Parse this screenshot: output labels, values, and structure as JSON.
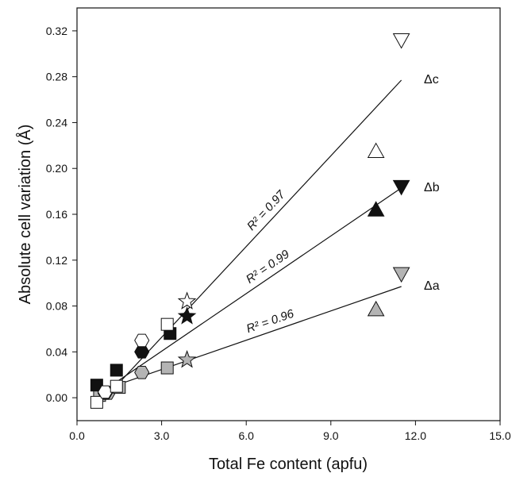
{
  "chart_data": {
    "type": "scatter",
    "xlabel": "Total Fe content (apfu)",
    "ylabel": "Absolute cell variation (Å)",
    "xlim": [
      0.0,
      15.0
    ],
    "ylim": [
      -0.02,
      0.34
    ],
    "x_ticks": [
      0.0,
      3.0,
      6.0,
      9.0,
      12.0,
      15.0
    ],
    "x_tick_labels": [
      "0.0",
      "3.0",
      "6.0",
      "9.0",
      "12.0",
      "15.0"
    ],
    "y_ticks": [
      0.0,
      0.04,
      0.08,
      0.12,
      0.16,
      0.2,
      0.24,
      0.28,
      0.32
    ],
    "y_tick_labels": [
      "0.00",
      "0.04",
      "0.08",
      "0.12",
      "0.16",
      "0.20",
      "0.24",
      "0.28",
      "0.32"
    ],
    "grid": false,
    "series": [
      {
        "name": "Δc",
        "fill": "#ffffff",
        "points": [
          {
            "x": 0.7,
            "y": -0.004,
            "marker": "square"
          },
          {
            "x": 1.0,
            "y": 0.005,
            "marker": "hexagon"
          },
          {
            "x": 1.4,
            "y": 0.01,
            "marker": "square"
          },
          {
            "x": 2.3,
            "y": 0.05,
            "marker": "hexagon"
          },
          {
            "x": 3.2,
            "y": 0.064,
            "marker": "square"
          },
          {
            "x": 3.9,
            "y": 0.084,
            "marker": "star"
          },
          {
            "x": 10.6,
            "y": 0.215,
            "marker": "triangle-up"
          },
          {
            "x": 11.5,
            "y": 0.312,
            "marker": "triangle-down"
          }
        ],
        "fit": {
          "x": [
            0.7,
            11.5
          ],
          "y": [
            -0.008,
            0.277
          ]
        },
        "r2_text": "R² = 0.97"
      },
      {
        "name": "Δb",
        "fill": "#111111",
        "points": [
          {
            "x": 0.7,
            "y": 0.011,
            "marker": "square"
          },
          {
            "x": 1.0,
            "y": 0.004,
            "marker": "hexagon"
          },
          {
            "x": 1.4,
            "y": 0.024,
            "marker": "square"
          },
          {
            "x": 2.3,
            "y": 0.04,
            "marker": "hexagon"
          },
          {
            "x": 3.3,
            "y": 0.056,
            "marker": "square"
          },
          {
            "x": 3.9,
            "y": 0.071,
            "marker": "star"
          },
          {
            "x": 10.6,
            "y": 0.164,
            "marker": "triangle-up"
          },
          {
            "x": 11.5,
            "y": 0.184,
            "marker": "triangle-down"
          }
        ],
        "fit": {
          "x": [
            0.7,
            11.5
          ],
          "y": [
            0.002,
            0.183
          ]
        },
        "r2_text": "R² = 0.99"
      },
      {
        "name": "Δa",
        "fill": "#b4b4b4",
        "points": [
          {
            "x": 0.8,
            "y": 0.002,
            "marker": "square"
          },
          {
            "x": 1.1,
            "y": 0.004,
            "marker": "hexagon"
          },
          {
            "x": 1.5,
            "y": 0.009,
            "marker": "square"
          },
          {
            "x": 2.3,
            "y": 0.022,
            "marker": "hexagon"
          },
          {
            "x": 3.2,
            "y": 0.026,
            "marker": "square"
          },
          {
            "x": 3.9,
            "y": 0.033,
            "marker": "star"
          },
          {
            "x": 10.6,
            "y": 0.077,
            "marker": "triangle-up"
          },
          {
            "x": 11.5,
            "y": 0.108,
            "marker": "triangle-down"
          }
        ],
        "fit": {
          "x": [
            0.7,
            11.5
          ],
          "y": [
            0.005,
            0.097
          ]
        },
        "r2_text": "R² = 0.96"
      }
    ]
  }
}
